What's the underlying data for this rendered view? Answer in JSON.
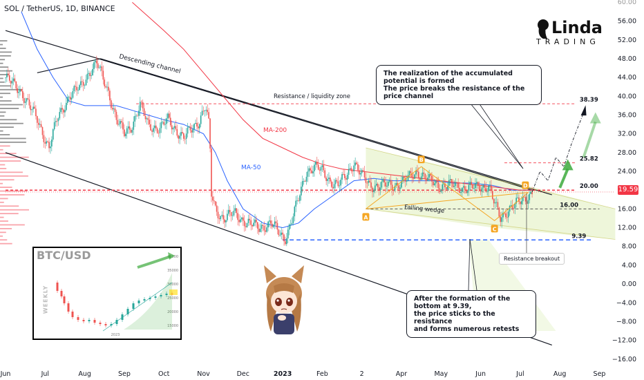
{
  "header": {
    "ticker": "SOL / TetherUS, 1D, BINANCE"
  },
  "brand": {
    "main": "Linda",
    "sub": "TRADING"
  },
  "price_tag": "19.59",
  "chart_data": {
    "type": "candlestick",
    "y_axis": {
      "ticks": [
        "56.00",
        "52.00",
        "48.00",
        "44.00",
        "40.00",
        "36.00",
        "32.00",
        "28.00",
        "24.00",
        "20.00",
        "16.00",
        "12.00",
        "8.00",
        "4.00",
        "0.00",
        "−4.00",
        "−8.00",
        "−12.00",
        "−16.00"
      ],
      "tick_values": [
        56,
        52,
        48,
        44,
        40,
        36,
        32,
        28,
        24,
        20,
        16,
        12,
        8,
        4,
        0,
        -4,
        -8,
        -12,
        -16
      ],
      "top_cut_label": "60.00",
      "range": [
        -17.5,
        60.5
      ]
    },
    "x_axis": {
      "ticks": [
        "Jun",
        "Jul",
        "Aug",
        "Sep",
        "Oct",
        "Nov",
        "Dec",
        "2023",
        "Feb",
        "2",
        "Apr",
        "May",
        "Jun",
        "Jul",
        "Aug",
        "Sep"
      ],
      "tick_months": [
        0,
        1,
        2,
        3,
        4,
        5,
        6,
        7,
        8,
        9,
        10,
        11,
        12,
        13,
        14,
        15
      ],
      "bold_index": 7
    },
    "price_path": [
      [
        0,
        44
      ],
      [
        0.4,
        41
      ],
      [
        0.8,
        35
      ],
      [
        1.1,
        29
      ],
      [
        1.3,
        35
      ],
      [
        1.6,
        40
      ],
      [
        1.9,
        42
      ],
      [
        2.1,
        45
      ],
      [
        2.3,
        47
      ],
      [
        2.4,
        45
      ],
      [
        2.6,
        41
      ],
      [
        2.8,
        35
      ],
      [
        3,
        32
      ],
      [
        3.2,
        34
      ],
      [
        3.4,
        38
      ],
      [
        3.6,
        34
      ],
      [
        3.9,
        33
      ],
      [
        4.1,
        35
      ],
      [
        4.3,
        33
      ],
      [
        4.5,
        31
      ],
      [
        4.7,
        33
      ],
      [
        4.9,
        35
      ],
      [
        5.05,
        38
      ],
      [
        5.15,
        33
      ],
      [
        5.2,
        19
      ],
      [
        5.3,
        16
      ],
      [
        5.5,
        14
      ],
      [
        5.8,
        15
      ],
      [
        6.1,
        13
      ],
      [
        6.4,
        12
      ],
      [
        6.7,
        13
      ],
      [
        6.9,
        11
      ],
      [
        7.05,
        9.6
      ],
      [
        7.2,
        13
      ],
      [
        7.4,
        18
      ],
      [
        7.6,
        24
      ],
      [
        7.8,
        25
      ],
      [
        8,
        24
      ],
      [
        8.2,
        22
      ],
      [
        8.4,
        21
      ],
      [
        8.6,
        23
      ],
      [
        8.8,
        26
      ],
      [
        9,
        23
      ],
      [
        9.2,
        21
      ],
      [
        9.5,
        21
      ],
      [
        9.8,
        21
      ],
      [
        10.1,
        22
      ],
      [
        10.4,
        24
      ],
      [
        10.7,
        22
      ],
      [
        11,
        21
      ],
      [
        11.3,
        21
      ],
      [
        11.6,
        20.5
      ],
      [
        11.9,
        20.5
      ],
      [
        12.2,
        21
      ],
      [
        12.35,
        17
      ],
      [
        12.5,
        14
      ],
      [
        12.7,
        16
      ],
      [
        12.9,
        17
      ],
      [
        13.1,
        18
      ],
      [
        13.3,
        19.6
      ]
    ],
    "moving_averages": [
      {
        "name": "MA-50",
        "color": "#2962ff",
        "path": [
          [
            0.4,
            58
          ],
          [
            0.8,
            50
          ],
          [
            1.2,
            44
          ],
          [
            1.6,
            39
          ],
          [
            2,
            38
          ],
          [
            2.4,
            38
          ],
          [
            2.8,
            38
          ],
          [
            3.2,
            37
          ],
          [
            3.6,
            36
          ],
          [
            4,
            35
          ],
          [
            4.5,
            34
          ],
          [
            5,
            32
          ],
          [
            5.3,
            28
          ],
          [
            5.6,
            22
          ],
          [
            6,
            16
          ],
          [
            6.5,
            13
          ],
          [
            7,
            12
          ],
          [
            7.4,
            13
          ],
          [
            7.8,
            16
          ],
          [
            8.3,
            19
          ],
          [
            8.8,
            22
          ],
          [
            9.3,
            22.5
          ],
          [
            9.8,
            22
          ],
          [
            10.3,
            22
          ],
          [
            10.8,
            22
          ],
          [
            11.3,
            21.5
          ],
          [
            11.8,
            21.5
          ],
          [
            12.3,
            21
          ],
          [
            12.8,
            20
          ],
          [
            13.3,
            20
          ]
        ]
      },
      {
        "name": "MA-200",
        "color": "#f23645",
        "path": [
          [
            3.2,
            60
          ],
          [
            3.6,
            57
          ],
          [
            4,
            54
          ],
          [
            4.5,
            50
          ],
          [
            5,
            45
          ],
          [
            5.5,
            40
          ],
          [
            6,
            35
          ],
          [
            6.5,
            31
          ],
          [
            7,
            29
          ],
          [
            7.5,
            27
          ],
          [
            8,
            25.5
          ],
          [
            8.5,
            24.5
          ],
          [
            9,
            24
          ],
          [
            9.5,
            23.5
          ],
          [
            10,
            23
          ],
          [
            10.5,
            22.5
          ],
          [
            11,
            22
          ],
          [
            11.5,
            21.5
          ],
          [
            12,
            21
          ],
          [
            12.5,
            20.5
          ],
          [
            13,
            20
          ],
          [
            13.3,
            20
          ]
        ]
      }
    ],
    "levels": [
      {
        "label": "38.39",
        "value": 38.39,
        "color": "#f23645",
        "style": "dashed"
      },
      {
        "label": "25.82",
        "value": 25.82,
        "color": "#f23645",
        "style": "dashed"
      },
      {
        "label": "20.00",
        "value": 20.0,
        "color": "#f23645",
        "style": "dashed"
      },
      {
        "label": "16.00",
        "value": 16.0,
        "color": "#555555",
        "style": "dashed"
      },
      {
        "label": "9.39",
        "value": 9.39,
        "color": "#2962ff",
        "style": "dashed"
      }
    ],
    "annotations": {
      "descending_channel": "Descending channel",
      "resistance_zone": "Resistance / liquidity zone",
      "ma200": "MA-200",
      "ma50": "MA-50",
      "falling_wedge": "Falling wedge",
      "points": [
        "A",
        "B",
        "C",
        "D"
      ]
    },
    "callouts": {
      "top_line1": "The realization of the accumulated potential is formed",
      "top_line2": "The price breaks the resistance of the price channel",
      "bottom_line1": "After the formation of the bottom at 9.39,",
      "bottom_line2": "the price sticks to the resistance",
      "bottom_line3": "and forms numerous retests",
      "breakout": "Resistance breakout"
    },
    "inset": {
      "title": "BTC/USD",
      "timeframe_label": "WEEKLY",
      "x_label": "2023",
      "y_ticks": [
        "40000",
        "35000",
        "30000",
        "25000",
        "20000",
        "15000"
      ]
    }
  }
}
